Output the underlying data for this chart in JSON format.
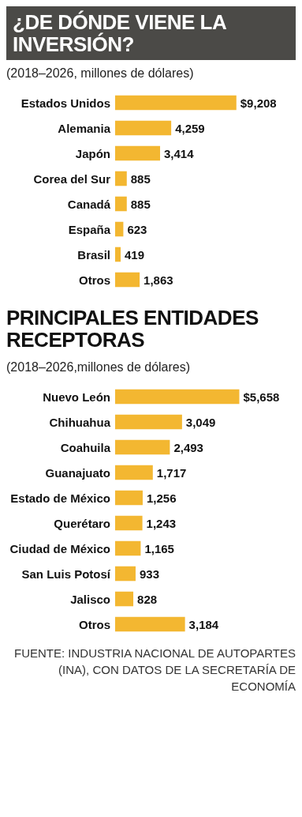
{
  "chart_data": [
    {
      "type": "bar",
      "orientation": "horizontal",
      "title": "¿DE DÓNDE VIENE LA INVERSIÓN?",
      "subtitle": "(2018–2026, millones de dólares)",
      "categories": [
        "Estados Unidos",
        "Alemania",
        "Japón",
        "Corea del Sur",
        "Canadá",
        "España",
        "Brasil",
        "Otros"
      ],
      "values": [
        9208,
        4259,
        3414,
        885,
        885,
        623,
        419,
        1863
      ],
      "color": "#f3b731",
      "value_labels": [
        "$9,208",
        "4,259",
        "3,414",
        "885",
        "885",
        "623",
        "419",
        "1,863"
      ]
    },
    {
      "type": "bar",
      "orientation": "horizontal",
      "title": "PRINCIPALES ENTIDADES RECEPTORAS",
      "subtitle": "(2018–2026,millones de dólares)",
      "categories": [
        "Nuevo León",
        "Chihuahua",
        "Coahuila",
        "Guanajuato",
        "Estado de México",
        "Querétaro",
        "Ciudad de México",
        "San Luis Potosí",
        "Jalisco",
        "Otros"
      ],
      "values": [
        5658,
        3049,
        2493,
        1717,
        1256,
        1243,
        1165,
        933,
        828,
        3184
      ],
      "color": "#f3b731",
      "value_labels": [
        "$5,658",
        "3,049",
        "2,493",
        "1,717",
        "1,256",
        "1,243",
        "1,165",
        "933",
        "828",
        "3,184"
      ],
      "annotations": [
        "FUENTE: INDUSTRIA NACIONAL DE AUTOPARTES (INA), CON DATOS DE LA SECRETARÍA DE ECONOMÍA"
      ]
    }
  ]
}
